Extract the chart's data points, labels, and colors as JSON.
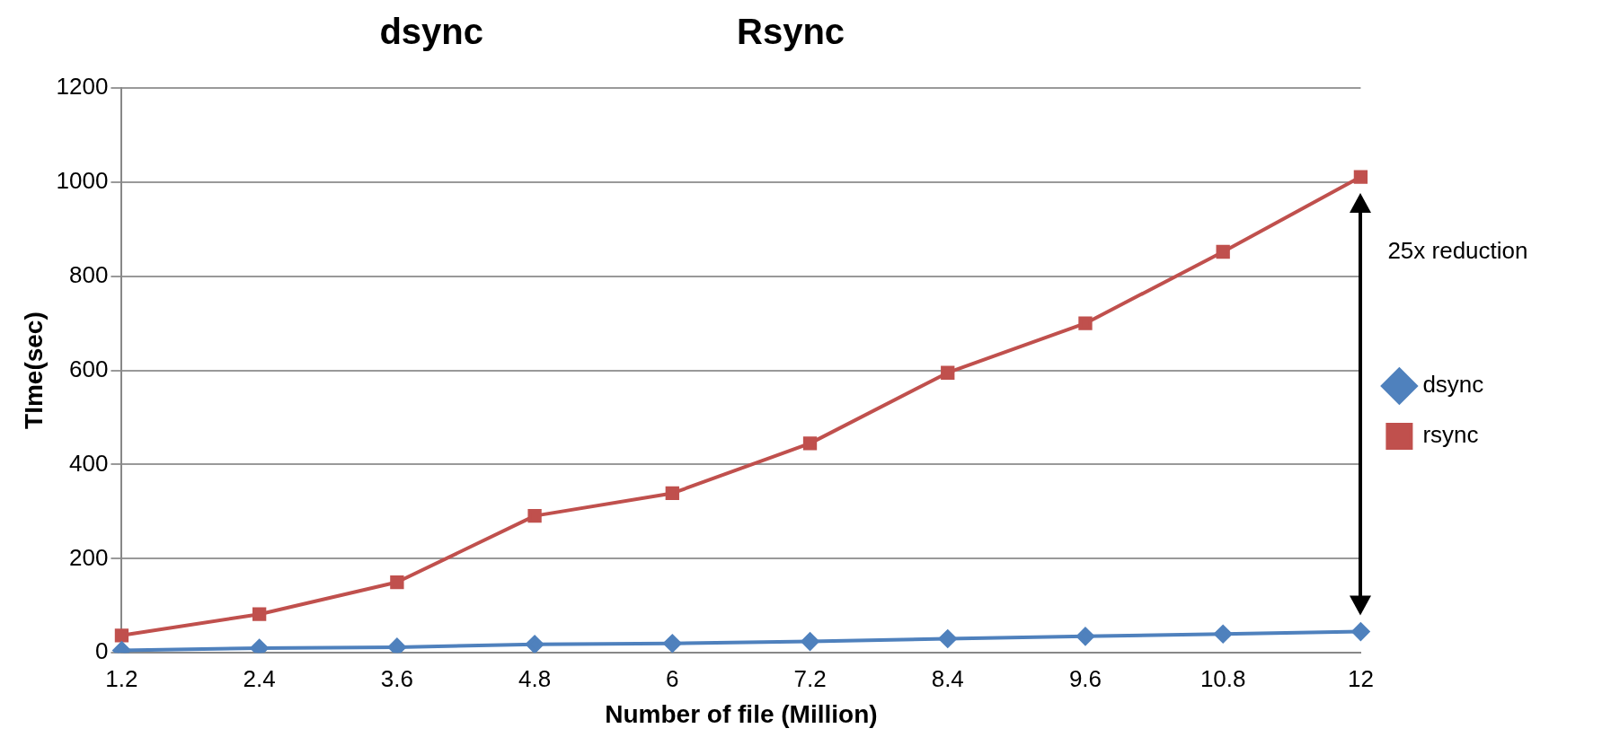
{
  "chart_data": {
    "type": "line",
    "xlabel": "Number of file (Million)",
    "ylabel": "TIme(sec)",
    "categories": [
      "1.2",
      "2.4",
      "3.6",
      "4.8",
      "6",
      "7.2",
      "8.4",
      "9.6",
      "10.8",
      "12"
    ],
    "series": [
      {
        "name": "dsync",
        "color": "#4f81bd",
        "marker": "diamond",
        "values": [
          5,
          10,
          12,
          18,
          20,
          24,
          30,
          35,
          40,
          45
        ]
      },
      {
        "name": "rsync",
        "color": "#c0504d",
        "marker": "square",
        "values": [
          37,
          82,
          150,
          291,
          339,
          445,
          595,
          700,
          852,
          1011
        ]
      }
    ],
    "ylim": [
      0,
      1200
    ],
    "yticks": [
      0,
      200,
      400,
      600,
      800,
      1000,
      1200
    ],
    "grid": "y",
    "legend": "right",
    "annotations": [
      "dsync",
      "Rsync",
      "25x reduction"
    ]
  }
}
